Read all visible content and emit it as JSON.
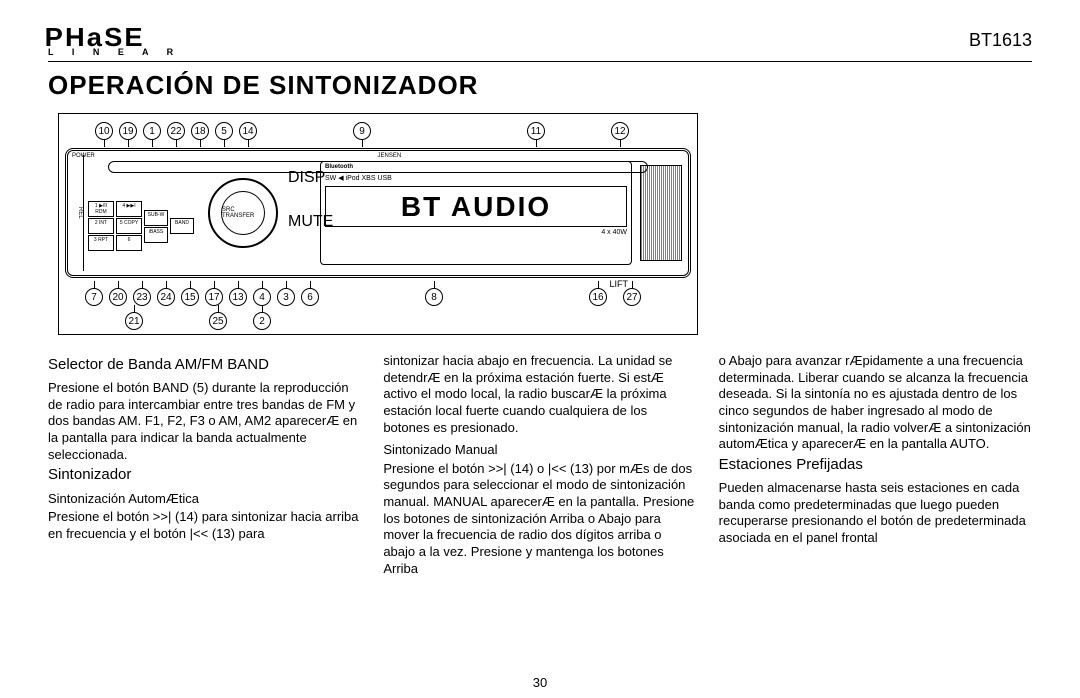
{
  "header": {
    "logo_main": "PHaSE",
    "logo_sub": "L I N E A R",
    "model": "BT1613"
  },
  "title": "OPERACIÓN DE SINTONIZADOR",
  "diagram": {
    "callouts_top": [
      "10",
      "19",
      "1",
      "22",
      "18",
      "5",
      "14",
      "9",
      "11",
      "12"
    ],
    "callouts_bottom1": [
      "7",
      "20",
      "23",
      "24",
      "15",
      "17",
      "13",
      "4",
      "3",
      "6",
      "8",
      "16",
      "27"
    ],
    "callouts_bottom2": [
      "21",
      "25",
      "2"
    ],
    "lift_label": "LIFT",
    "radio": {
      "power": "POWER",
      "brand": "JENSEN",
      "rel": "REL",
      "btn_col1": [
        "1\n▶/II\nRDM",
        "2\nINT",
        "3\nRPT"
      ],
      "btn_col2": [
        "4\n▶▶I",
        "5\nCOPY",
        "6"
      ],
      "btn_col3": [
        "SUB-W",
        "iBASS"
      ],
      "btn_col4": [
        "BAND"
      ],
      "btn_under_knob": [
        "DISP",
        "MUTE"
      ],
      "knob_label": "SRC\nTRANSFER",
      "bt_logo": "Bluetooth",
      "disp_icons": "SW ◀ iPod  XBS  USB",
      "disp_main": "BT AUDIO",
      "disp_power": "4 x 40W"
    }
  },
  "col1": {
    "h2a": "Selector de Banda AM/FM BAND",
    "p1": "Presione el botón BAND (5) durante la reproducción de radio para intercambiar entre tres bandas de FM y dos bandas AM. F1, F2, F3 o AM, AM2 aparecerÆ en la pantalla para indicar la banda actualmente seleccionada.",
    "h2b": "Sintonizador",
    "h3a": "Sintonización AutomÆtica",
    "p2": "Presione el botón >>| (14) para sintonizar hacia arriba en frecuencia y el botón |<< (13) para"
  },
  "col2": {
    "p1": "sintonizar hacia abajo en frecuencia. La unidad se detendrÆ en la próxima estación fuerte. Si estÆ activo el modo local, la radio buscarÆ la próxima estación local fuerte cuando cualquiera de los botones es presionado.",
    "h3a": "Sintonizado Manual",
    "p2": "Presione el botón >>| (14) o |<< (13) por mÆs de dos segundos para seleccionar el modo de sintonización manual. MANUAL aparecerÆ en la pantalla. Presione los botones de sintonización Arriba o Abajo para mover la frecuencia de radio dos dígitos arriba o abajo a la vez. Presione y mantenga los botones Arriba"
  },
  "col3": {
    "p1": "o Abajo para avanzar rÆpidamente a una frecuencia determinada. Liberar cuando se alcanza la frecuencia deseada. Si la sintonía no es ajustada dentro de los cinco segundos de haber ingresado al modo de sintonización manual, la radio volverÆ a sintonización automÆtica y aparecerÆ en la pantalla AUTO.",
    "h2a": "Estaciones Prefijadas",
    "p2": "Pueden almacenarse hasta seis estaciones en cada banda como predeterminadas que luego pueden recuperarse presionando el botón de predeterminada asociada en el panel frontal"
  },
  "page_number": "30"
}
